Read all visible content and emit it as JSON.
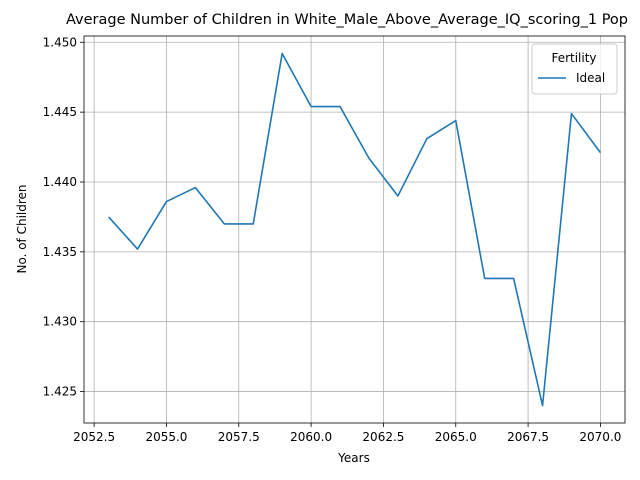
{
  "chart_data": {
    "type": "line",
    "title": "Average Number of Children in White_Male_Above_Average_IQ_scoring_1 Pop",
    "xlabel": "Years",
    "ylabel": "No. of Children",
    "xlim": [
      2052.15,
      2070.85
    ],
    "ylim": [
      1.42275,
      1.45045
    ],
    "xticks": [
      2052.5,
      2055.0,
      2057.5,
      2060.0,
      2062.5,
      2065.0,
      2067.5,
      2070.0
    ],
    "xtick_labels": [
      "2052.5",
      "2055.0",
      "2057.5",
      "2060.0",
      "2062.5",
      "2065.0",
      "2067.5",
      "2070.0"
    ],
    "yticks": [
      1.425,
      1.43,
      1.435,
      1.44,
      1.445,
      1.45
    ],
    "ytick_labels": [
      "1.425",
      "1.430",
      "1.435",
      "1.440",
      "1.445",
      "1.450"
    ],
    "grid": true,
    "legend": {
      "title": "Fertility",
      "placement": "top-right"
    },
    "series": [
      {
        "name": "Ideal",
        "color": "#1f77b4",
        "x": [
          2053,
          2054,
          2055,
          2056,
          2057,
          2058,
          2059,
          2060,
          2061,
          2062,
          2063,
          2064,
          2065,
          2066,
          2067,
          2068,
          2069,
          2070
        ],
        "values": [
          1.4375,
          1.4352,
          1.4386,
          1.4396,
          1.437,
          1.437,
          1.4492,
          1.4454,
          1.4454,
          1.4417,
          1.439,
          1.4431,
          1.4444,
          1.4331,
          1.4331,
          1.424,
          1.4449,
          1.4421
        ]
      }
    ]
  }
}
